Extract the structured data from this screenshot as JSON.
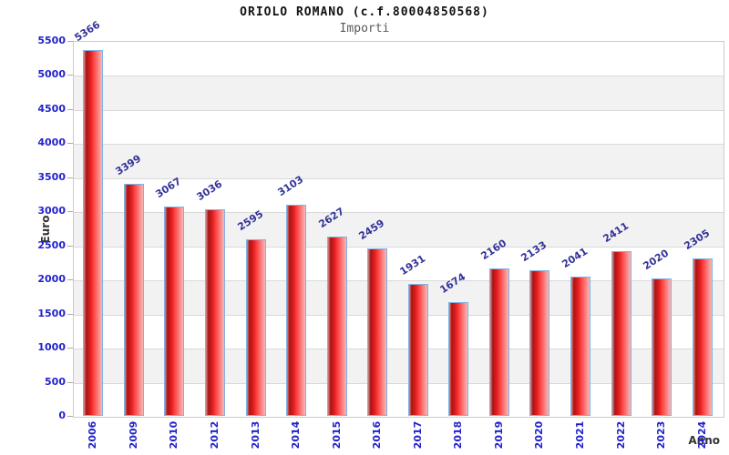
{
  "chart_data": {
    "type": "bar",
    "title": "ORIOLO ROMANO (c.f.80004850568)",
    "subtitle": "Importi",
    "xlabel": "Anno",
    "ylabel": "Euro",
    "categories": [
      "2006",
      "2009",
      "2010",
      "2012",
      "2013",
      "2014",
      "2015",
      "2016",
      "2017",
      "2018",
      "2019",
      "2020",
      "2021",
      "2022",
      "2023",
      "2024"
    ],
    "values": [
      5366,
      3399,
      3067,
      3036,
      2595,
      3103,
      2627,
      2459,
      1931,
      1674,
      2160,
      2133,
      2041,
      2411,
      2020,
      2305
    ],
    "y_ticks": [
      "0",
      "500",
      "1000",
      "1500",
      "2000",
      "2500",
      "3000",
      "3500",
      "4000",
      "4500",
      "5000",
      "5500"
    ],
    "ylim": [
      0,
      5500
    ],
    "ytick_step": 500,
    "grid": true,
    "legend": "none"
  },
  "colors": {
    "title_color": "#111111",
    "subtitle_color": "#5a5a5a",
    "tick_label": "#2222cc",
    "value_label": "#333399",
    "axis_title": "#333333",
    "band_white": "#ffffff",
    "band_gray": "#f2f2f2",
    "grid_line": "#d9d9d9",
    "plot_border": "#cccccc",
    "bar_border": "#7fb2e5",
    "bar_gradient_1": "#d98a8a",
    "bar_gradient_2": "#a81414",
    "bar_gradient_3": "#e82020",
    "bar_gradient_4": "#ff4d4d",
    "bar_gradient_5": "#f5b8b8"
  }
}
